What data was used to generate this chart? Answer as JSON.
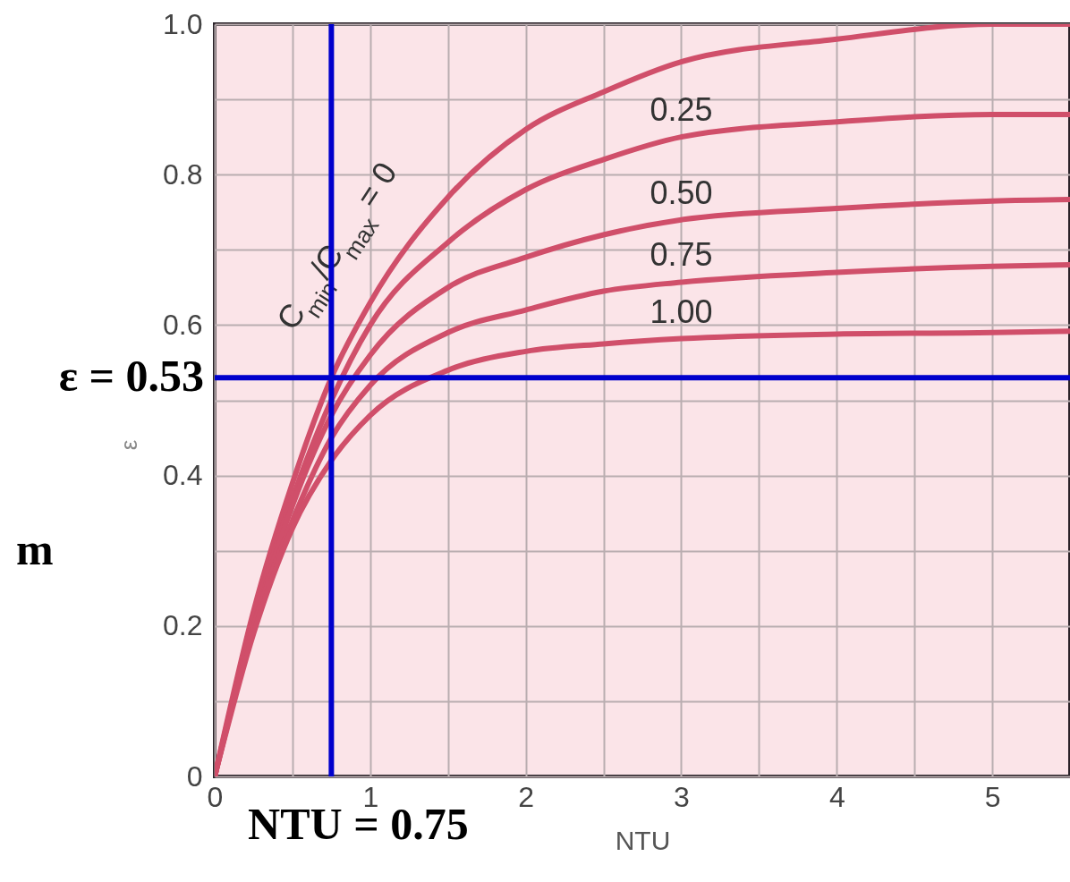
{
  "chart_data": {
    "type": "line",
    "xlabel": "NTU",
    "ylabel": "ε",
    "x": [
      0,
      0.25,
      0.5,
      0.75,
      1,
      1.5,
      2,
      2.5,
      3,
      4,
      5,
      5.5
    ],
    "series": [
      {
        "name": "C$_{min}$/C$_{max}$ = 0",
        "color": "#d04f6a",
        "values": [
          0,
          0.22,
          0.39,
          0.53,
          0.63,
          0.77,
          0.86,
          0.91,
          0.95,
          0.98,
          1.0,
          1.0
        ]
      },
      {
        "name": "0.25",
        "color": "#d04f6a",
        "values": [
          0,
          0.21,
          0.37,
          0.5,
          0.6,
          0.71,
          0.78,
          0.82,
          0.85,
          0.87,
          0.88,
          0.88
        ]
      },
      {
        "name": "0.50",
        "color": "#d04f6a",
        "values": [
          0,
          0.2,
          0.36,
          0.48,
          0.56,
          0.65,
          0.69,
          0.72,
          0.74,
          0.755,
          0.765,
          0.767
        ]
      },
      {
        "name": "0.75",
        "color": "#d04f6a",
        "values": [
          0,
          0.2,
          0.34,
          0.45,
          0.52,
          0.59,
          0.62,
          0.645,
          0.657,
          0.67,
          0.678,
          0.68
        ]
      },
      {
        "name": "1.00",
        "color": "#d04f6a",
        "values": [
          0,
          0.19,
          0.33,
          0.42,
          0.48,
          0.54,
          0.565,
          0.575,
          0.582,
          0.588,
          0.59,
          0.592
        ]
      }
    ],
    "xlim": [
      0,
      5.5
    ],
    "xticks": [
      0,
      {
        "value": 0.5,
        "label": null
      },
      1,
      {
        "value": 1.5,
        "label": null
      },
      2,
      {
        "value": 2.5,
        "label": null
      },
      3,
      {
        "value": 3.5,
        "label": null
      },
      4,
      {
        "value": 4.5,
        "label": null
      },
      5
    ],
    "ylim": [
      0,
      1
    ],
    "yticks": [
      0,
      {
        "value": 0.1,
        "label": null
      },
      0.2,
      {
        "value": 0.3,
        "label": null
      },
      0.4,
      {
        "value": 0.5,
        "label": null
      },
      0.6,
      {
        "value": 0.7,
        "label": null
      },
      0.8,
      {
        "value": 0.9,
        "label": null
      },
      {
        "value": 1,
        "label": "1.0"
      }
    ],
    "grid": true,
    "legend": false,
    "line_style": "solid",
    "ref_lines": [
      {
        "axis": "x",
        "value": 0.75,
        "label": "NTU = 0.75",
        "color": "#0000cc"
      },
      {
        "axis": "y",
        "value": 0.53,
        "label": "ε = 0.53",
        "color": "#0000cc"
      }
    ],
    "annotations": [
      "m"
    ]
  }
}
